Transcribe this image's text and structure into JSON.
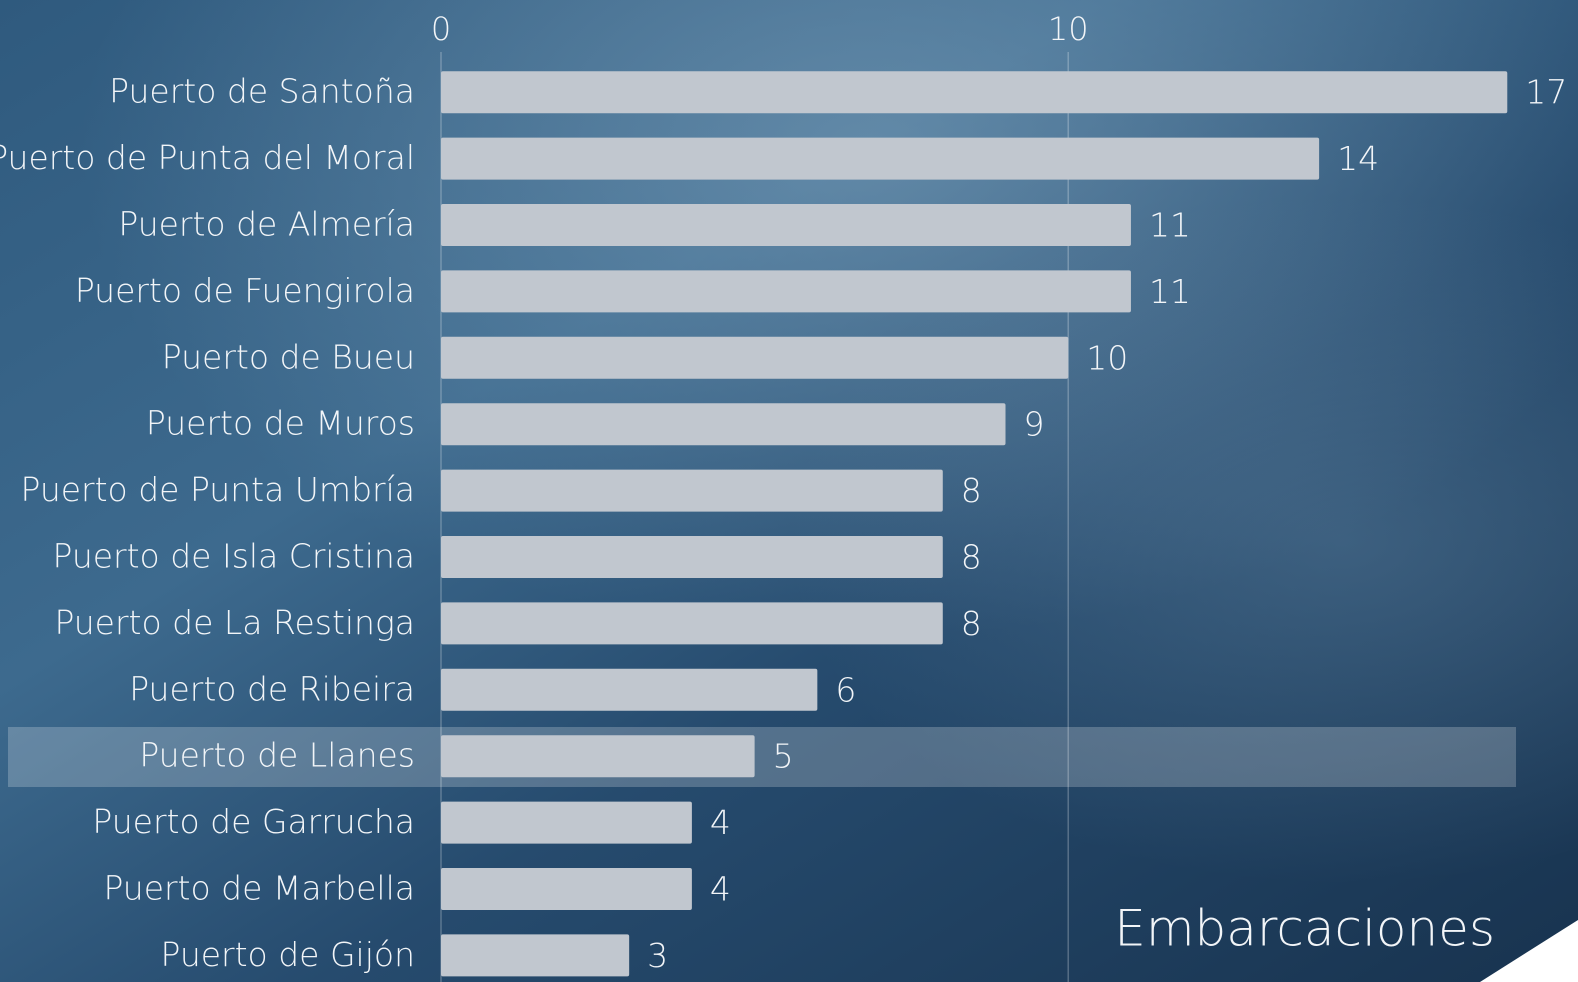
{
  "chart_data": {
    "type": "bar",
    "orientation": "horizontal",
    "x_label": "Embarcaciones",
    "categories": [
      "Puerto de Santoña",
      "Puerto de Punta del Moral",
      "Puerto de Almería",
      "Puerto de Fuengirola",
      "Puerto de Bueu",
      "Puerto de Muros",
      "Puerto de Punta Umbría",
      "Puerto de Isla Cristina",
      "Puerto de La Restinga",
      "Puerto de Ribeira",
      "Puerto de Llanes",
      "Puerto de Garrucha",
      "Puerto de Marbella",
      "Puerto de Gijón"
    ],
    "values": [
      17,
      14,
      11,
      11,
      10,
      9,
      8,
      8,
      8,
      6,
      5,
      4,
      4,
      3
    ],
    "color": "#c1c7cf",
    "xlim": [
      0,
      18
    ],
    "xticks": [
      0,
      10
    ],
    "grid": true
  }
}
